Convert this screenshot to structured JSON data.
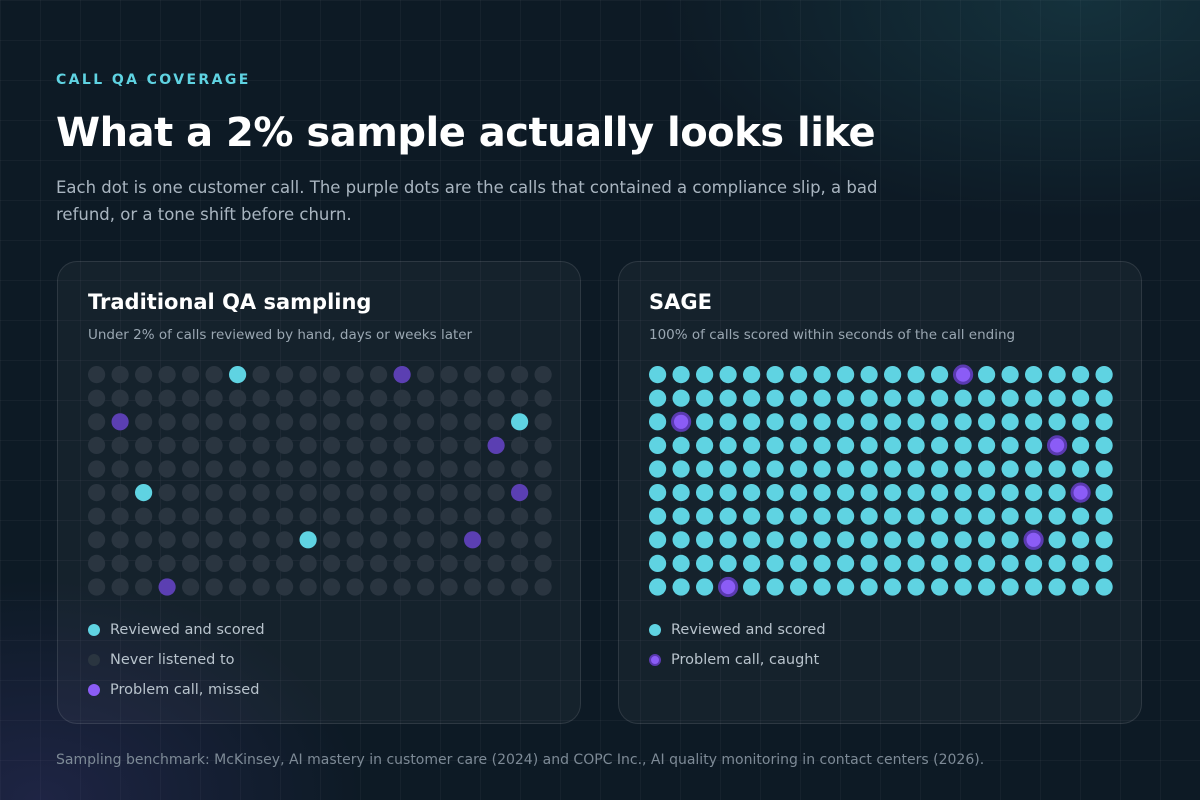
{
  "eyebrow": "CALL QA COVERAGE",
  "headline": "What a 2% sample actually looks like",
  "subtitle": "Each dot is one customer call. The purple dots are the calls that contained a compliance slip, a bad refund, or a tone shift before churn.",
  "colors": {
    "reviewed": "#5fd3e2",
    "unreviewed": "#2a3540",
    "problem_missed": "#5b3fb2",
    "problem_caught": "#8b5cf6",
    "problem_caught_ring": "#5a3ab0"
  },
  "panels": [
    {
      "title": "Traditional QA sampling",
      "subtitle": "Under 2% of calls reviewed by hand, days or weeks later",
      "legend": [
        {
          "label": "Reviewed and scored",
          "icon": "reviewed-dot"
        },
        {
          "label": "Never listened to",
          "icon": "unreviewed-dot"
        },
        {
          "label": "Problem call, missed",
          "icon": "problem-missed-dot"
        }
      ]
    },
    {
      "title": "SAGE",
      "subtitle": "100% of calls scored within seconds of the call ending",
      "legend": [
        {
          "label": "Reviewed and scored",
          "icon": "reviewed-dot"
        },
        {
          "label": "Problem call, caught",
          "icon": "problem-caught-dot"
        }
      ]
    }
  ],
  "chart_data": [
    {
      "type": "dot-grid",
      "name": "Traditional QA sampling",
      "rows": 10,
      "cols": 20,
      "total_calls": 200,
      "reviewed_cells": [
        [
          0,
          6
        ],
        [
          2,
          18
        ],
        [
          5,
          2
        ],
        [
          7,
          9
        ]
      ],
      "problem_cells": [
        [
          0,
          13
        ],
        [
          2,
          1
        ],
        [
          3,
          17
        ],
        [
          5,
          18
        ],
        [
          7,
          16
        ],
        [
          9,
          3
        ]
      ],
      "default_state": "never listened to"
    },
    {
      "type": "dot-grid",
      "name": "SAGE",
      "rows": 10,
      "cols": 20,
      "total_calls": 200,
      "reviewed_cells": "all",
      "problem_cells": [
        [
          0,
          13
        ],
        [
          2,
          1
        ],
        [
          3,
          17
        ],
        [
          5,
          18
        ],
        [
          7,
          16
        ],
        [
          9,
          3
        ]
      ],
      "default_state": "reviewed and scored"
    }
  ],
  "footnote": "Sampling benchmark: McKinsey, AI mastery in customer care (2024) and COPC Inc., AI quality monitoring in contact centers (2026)."
}
